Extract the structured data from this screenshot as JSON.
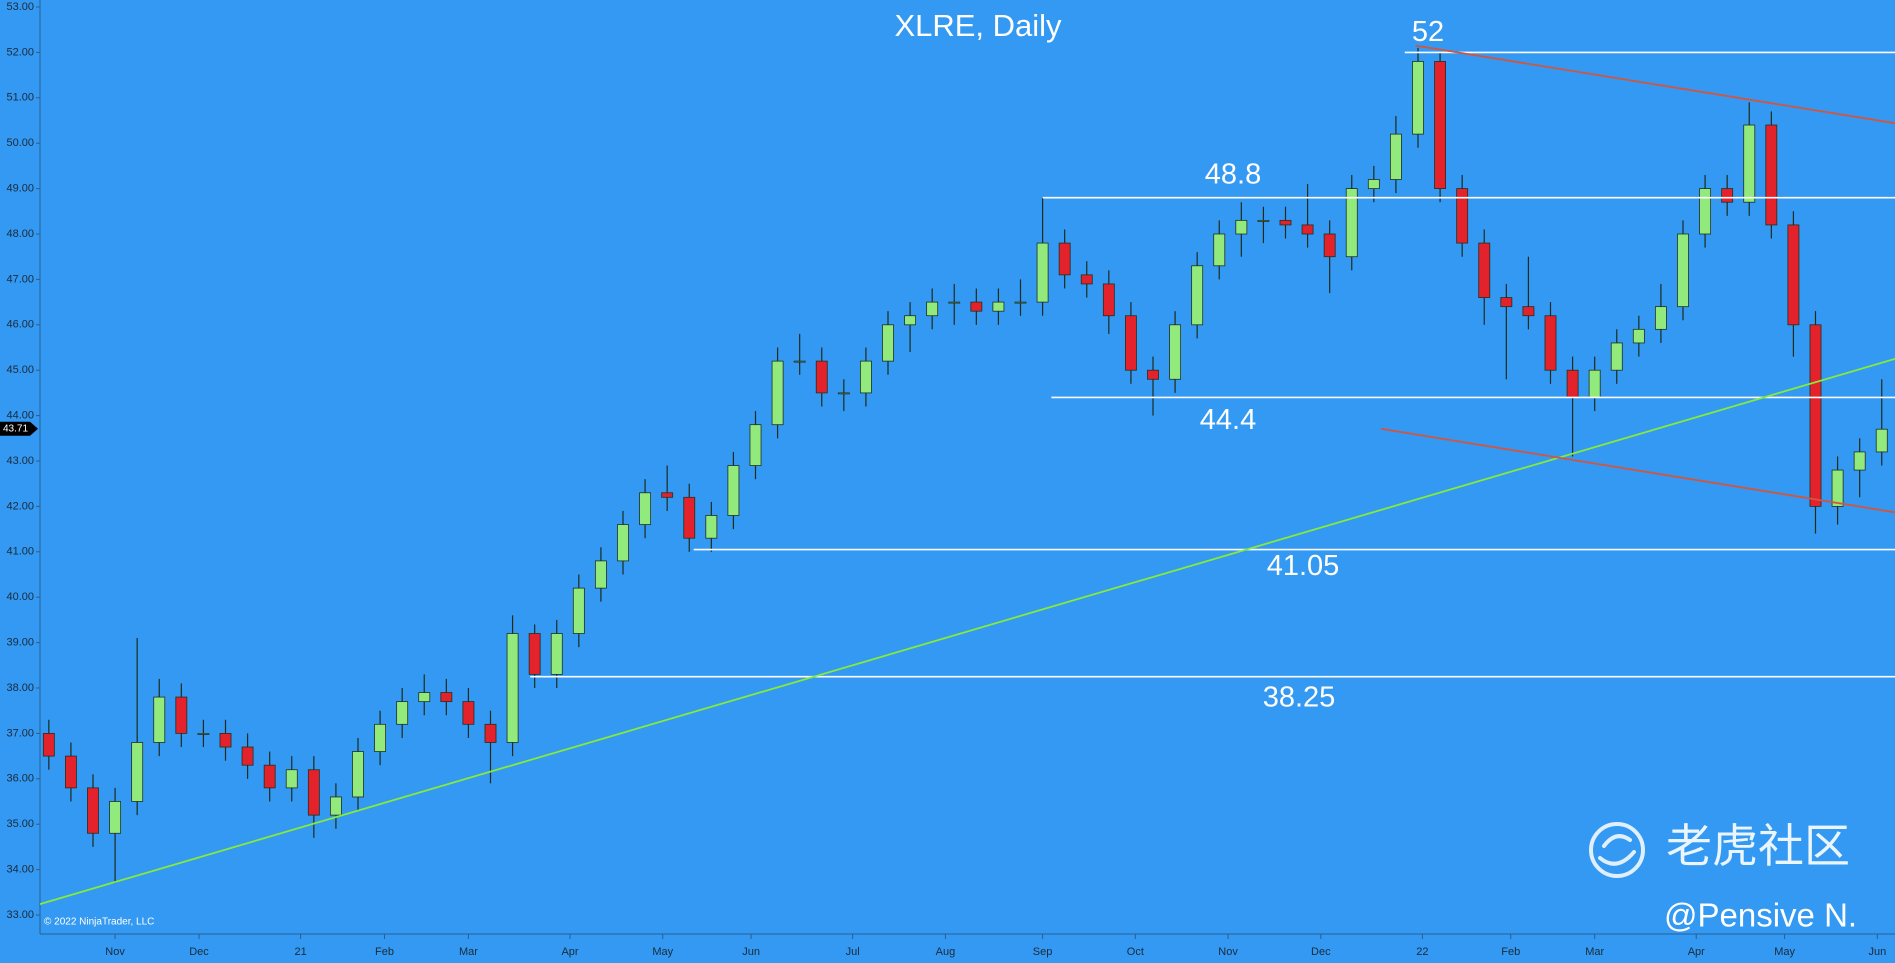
{
  "chart_data": {
    "type": "candlestick",
    "title": "XLRE, Daily",
    "x": [
      2,
      7,
      12,
      17,
      22,
      27,
      32,
      37,
      42,
      47,
      52,
      57,
      62,
      67,
      72,
      77,
      82,
      87,
      92,
      97,
      102,
      107,
      112,
      117,
      122,
      127,
      132,
      137,
      142,
      147,
      152,
      157,
      162,
      167,
      172,
      177,
      182,
      187,
      192,
      197,
      202,
      207,
      212,
      217,
      222,
      227,
      232,
      237,
      242,
      247,
      252,
      257,
      262,
      267,
      272,
      277,
      282,
      287,
      292,
      297,
      302,
      307,
      312,
      317,
      322,
      327,
      332,
      337,
      342,
      347,
      352,
      357,
      362,
      367,
      372,
      377,
      382,
      387,
      392,
      397,
      402,
      407,
      412,
      417
    ],
    "open": [
      37.0,
      36.5,
      35.8,
      34.8,
      35.5,
      36.8,
      37.8,
      37.0,
      37.0,
      36.7,
      36.3,
      35.8,
      36.2,
      35.2,
      35.6,
      36.6,
      37.2,
      37.7,
      37.9,
      37.7,
      37.2,
      36.8,
      39.2,
      38.3,
      39.2,
      40.2,
      40.8,
      41.6,
      42.3,
      42.2,
      41.3,
      41.8,
      42.9,
      43.8,
      45.2,
      45.2,
      44.5,
      44.5,
      45.2,
      46.0,
      46.2,
      46.5,
      46.5,
      46.3,
      46.5,
      46.5,
      47.8,
      47.1,
      46.9,
      46.2,
      45.0,
      44.8,
      46.0,
      47.3,
      48.0,
      48.3,
      48.3,
      48.2,
      48.0,
      47.5,
      49.0,
      49.2,
      50.2,
      51.8,
      49.0,
      47.8,
      46.6,
      46.4,
      46.2,
      45.0,
      44.4,
      45.0,
      45.6,
      45.9,
      46.4,
      48.0,
      49.0,
      48.7,
      50.4,
      48.2,
      46.0,
      42.0,
      42.8,
      43.2
    ],
    "high": [
      37.3,
      36.8,
      36.1,
      35.8,
      39.1,
      38.2,
      38.1,
      37.3,
      37.3,
      37.0,
      36.6,
      36.5,
      36.5,
      35.9,
      36.9,
      37.5,
      38.0,
      38.3,
      38.2,
      38.0,
      37.5,
      39.6,
      39.4,
      39.5,
      40.5,
      41.1,
      41.9,
      42.6,
      42.9,
      42.5,
      42.1,
      43.2,
      44.1,
      45.5,
      45.8,
      45.5,
      44.8,
      45.5,
      46.3,
      46.5,
      46.8,
      46.9,
      46.8,
      46.8,
      47.0,
      48.8,
      48.1,
      47.4,
      47.2,
      46.5,
      45.3,
      46.3,
      47.6,
      48.3,
      48.7,
      48.6,
      48.6,
      49.1,
      48.3,
      49.3,
      49.5,
      50.6,
      52.1,
      52.0,
      49.3,
      48.1,
      46.9,
      47.5,
      46.5,
      45.3,
      45.3,
      45.9,
      46.2,
      46.9,
      48.3,
      49.3,
      49.3,
      50.9,
      50.7,
      48.5,
      46.3,
      43.1,
      43.5,
      44.8
    ],
    "low": [
      36.2,
      35.5,
      34.5,
      33.7,
      35.2,
      36.5,
      36.7,
      36.7,
      36.4,
      36.0,
      35.5,
      35.5,
      34.7,
      34.9,
      35.3,
      36.3,
      36.9,
      37.4,
      37.4,
      36.9,
      35.9,
      36.5,
      38.0,
      38.0,
      38.9,
      39.9,
      40.5,
      41.3,
      41.9,
      41.0,
      41.0,
      41.5,
      42.6,
      43.5,
      44.9,
      44.2,
      44.1,
      44.2,
      44.9,
      45.4,
      45.9,
      46.0,
      46.0,
      46.0,
      46.2,
      46.2,
      46.8,
      46.6,
      45.8,
      44.7,
      44.0,
      44.5,
      45.7,
      47.0,
      47.5,
      47.8,
      47.9,
      47.7,
      46.7,
      47.2,
      48.7,
      48.9,
      49.9,
      48.7,
      47.5,
      46.0,
      44.8,
      45.9,
      44.7,
      43.1,
      44.1,
      44.7,
      45.3,
      45.6,
      46.1,
      47.7,
      48.4,
      48.4,
      47.9,
      45.3,
      41.4,
      41.6,
      42.2,
      42.9
    ],
    "close": [
      36.5,
      35.8,
      34.8,
      35.5,
      36.8,
      37.8,
      37.0,
      37.0,
      36.7,
      36.3,
      35.8,
      36.2,
      35.2,
      35.6,
      36.6,
      37.2,
      37.7,
      37.9,
      37.7,
      37.2,
      36.8,
      39.2,
      38.3,
      39.2,
      40.2,
      40.8,
      41.6,
      42.3,
      42.2,
      41.3,
      41.8,
      42.9,
      43.8,
      45.2,
      45.2,
      44.5,
      44.5,
      45.2,
      46.0,
      46.2,
      46.5,
      46.5,
      46.3,
      46.5,
      46.5,
      47.8,
      47.1,
      46.9,
      46.2,
      45.0,
      44.8,
      46.0,
      47.3,
      48.0,
      48.3,
      48.3,
      48.2,
      48.0,
      47.5,
      49.0,
      49.2,
      50.2,
      51.8,
      49.0,
      47.8,
      46.6,
      46.4,
      46.2,
      45.0,
      44.4,
      45.0,
      45.6,
      45.9,
      46.4,
      48.0,
      49.0,
      48.7,
      50.4,
      48.2,
      46.0,
      42.0,
      42.8,
      43.2,
      43.7
    ],
    "up_color": "#93ea7c",
    "down_color": "#e3222c",
    "xlim": [
      0,
      420
    ],
    "xticks": [
      {
        "value": 17,
        "label": "Nov"
      },
      {
        "value": 36,
        "label": "Dec"
      },
      {
        "value": 59,
        "label": "21"
      },
      {
        "value": 78,
        "label": "Feb"
      },
      {
        "value": 97,
        "label": "Mar"
      },
      {
        "value": 120,
        "label": "Apr"
      },
      {
        "value": 141,
        "label": "May"
      },
      {
        "value": 161,
        "label": "Jun"
      },
      {
        "value": 184,
        "label": "Jul"
      },
      {
        "value": 205,
        "label": "Aug"
      },
      {
        "value": 227,
        "label": "Sep"
      },
      {
        "value": 248,
        "label": "Oct"
      },
      {
        "value": 269,
        "label": "Nov"
      },
      {
        "value": 290,
        "label": "Dec"
      },
      {
        "value": 313,
        "label": "22"
      },
      {
        "value": 333,
        "label": "Feb"
      },
      {
        "value": 352,
        "label": "Mar"
      },
      {
        "value": 375,
        "label": "Apr"
      },
      {
        "value": 395,
        "label": "May"
      },
      {
        "value": 416,
        "label": "Jun"
      }
    ],
    "ylim": [
      33,
      53
    ],
    "yticks": [
      {
        "value": 33,
        "label": "33.00"
      },
      {
        "value": 34,
        "label": "34.00"
      },
      {
        "value": 35,
        "label": "35.00"
      },
      {
        "value": 36,
        "label": "36.00"
      },
      {
        "value": 37,
        "label": "37.00"
      },
      {
        "value": 38,
        "label": "38.00"
      },
      {
        "value": 39,
        "label": "39.00"
      },
      {
        "value": 40,
        "label": "40.00"
      },
      {
        "value": 41,
        "label": "41.00"
      },
      {
        "value": 42,
        "label": "42.00"
      },
      {
        "value": 43,
        "label": "43.00"
      },
      {
        "value": 44,
        "label": "44.00"
      },
      {
        "value": 45,
        "label": "45.00"
      },
      {
        "value": 46,
        "label": "46.00"
      },
      {
        "value": 47,
        "label": "47.00"
      },
      {
        "value": 48,
        "label": "48.00"
      },
      {
        "value": 49,
        "label": "49.00"
      },
      {
        "value": 50,
        "label": "50.00"
      },
      {
        "value": 51,
        "label": "51.00"
      },
      {
        "value": 52,
        "label": "52.00"
      },
      {
        "value": 53,
        "label": "53.00"
      }
    ],
    "last_price": 43.71,
    "levels": [
      {
        "value": 52,
        "start": 309
      },
      {
        "value": 48.8,
        "start": 227
      },
      {
        "value": 44.4,
        "start": 229
      },
      {
        "value": 41.05,
        "start": 148
      },
      {
        "value": 38.25,
        "start": 111
      }
    ],
    "trendlines": [
      {
        "color": "#86ea3c",
        "x": [
          0,
          420
        ],
        "y": [
          33.24,
          45.25
        ]
      },
      {
        "color": "#d2563f",
        "x": [
          311.5,
          420
        ],
        "y": [
          52.15,
          50.44
        ]
      },
      {
        "color": "#d2563f",
        "x": [
          303.6,
          420
        ],
        "y": [
          43.71,
          41.87
        ]
      }
    ]
  },
  "footer": {
    "copyright": "© 2022 NinjaTrader, LLC"
  },
  "watermark": {
    "brand": "老虎社区",
    "author": "@Pensive N."
  }
}
